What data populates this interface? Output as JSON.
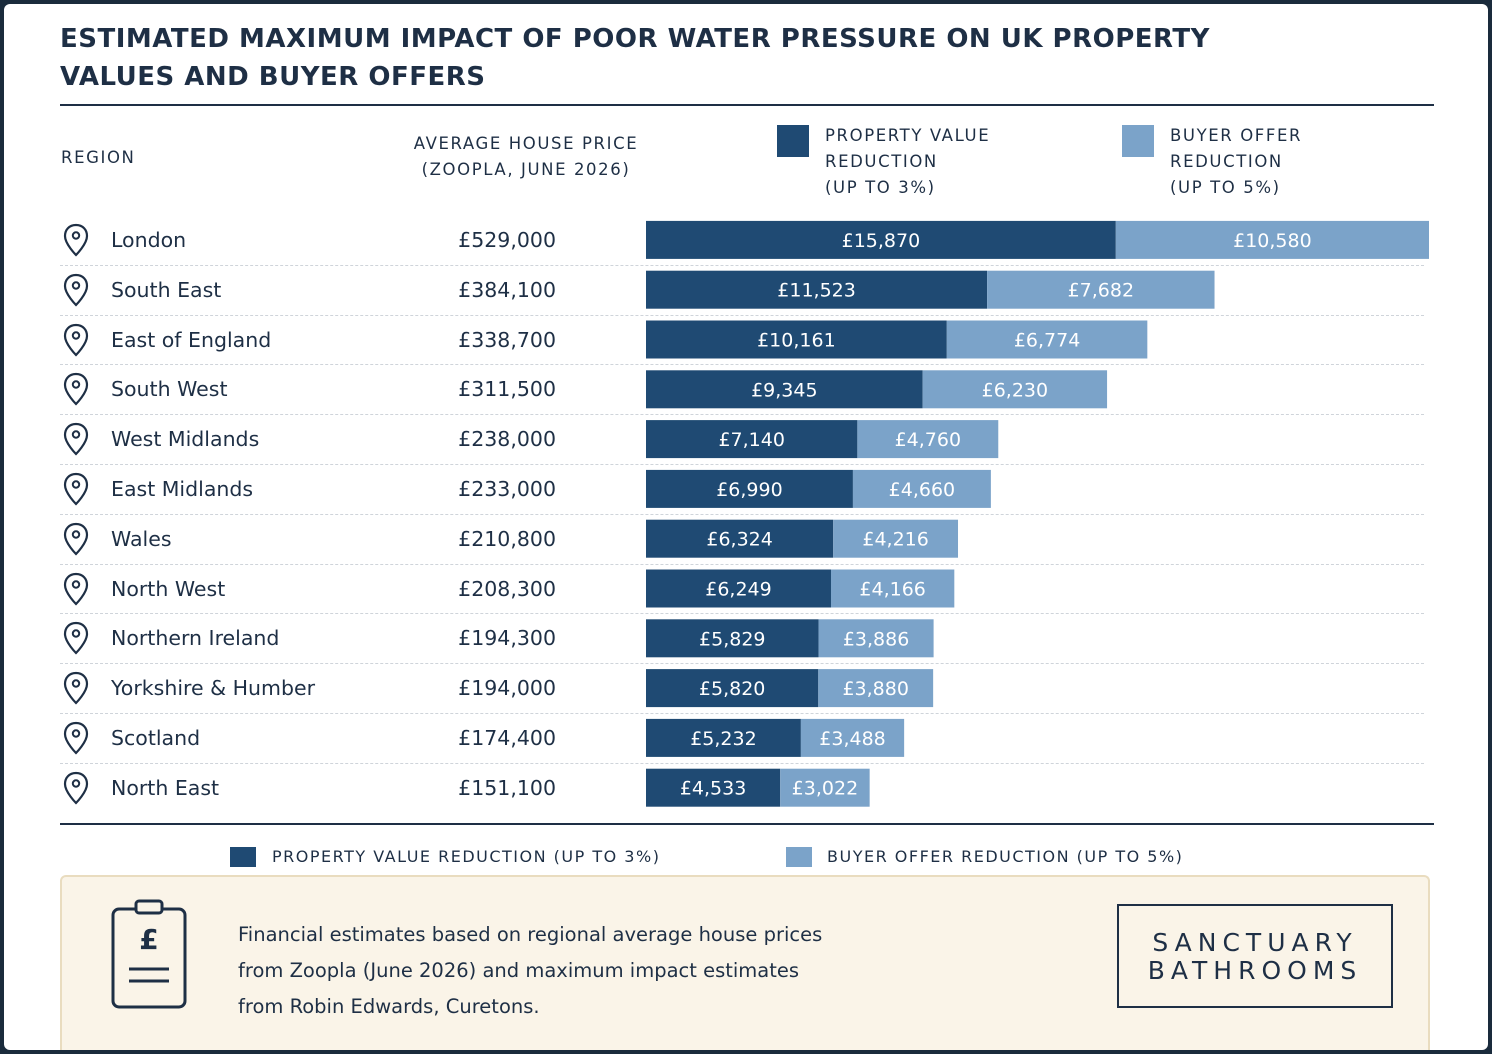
{
  "title": "ESTIMATED MAXIMUM IMPACT OF POOR WATER PRESSURE ON UK PROPERTY VALUES AND BUYER OFFERS",
  "headers": {
    "region": "REGION",
    "price_line1": "AVERAGE HOUSE PRICE",
    "price_line2": "(ZOOPLA, JUNE 2026)",
    "pv_line1": "PROPERTY VALUE",
    "pv_line2": "REDUCTION",
    "pv_line3": "(UP TO 3%)",
    "bo_line1": "BUYER OFFER",
    "bo_line2": "REDUCTION",
    "bo_line3": "(UP TO 5%)"
  },
  "colors": {
    "property_value": "#1f4a73",
    "buyer_offer": "#7ba3c9",
    "text": "#1e2f45"
  },
  "icons": {
    "row": "location-pin-icon",
    "note": "clipboard-pound-icon"
  },
  "chart_data": {
    "type": "bar",
    "orientation": "horizontal",
    "stacked": true,
    "categories": [
      "London",
      "South East",
      "East of England",
      "South West",
      "West Midlands",
      "East Midlands",
      "Wales",
      "North West",
      "Northern Ireland",
      "Yorkshire & Humber",
      "Scotland",
      "North East"
    ],
    "prices": [
      "£529,000",
      "£384,100",
      "£338,700",
      "£311,500",
      "£238,000",
      "£233,000",
      "£210,800",
      "£208,300",
      "£194,300",
      "£194,000",
      "£174,400",
      "£151,100"
    ],
    "series": [
      {
        "name": "PROPERTY VALUE REDUCTION (UP TO 3%)",
        "values": [
          15870,
          11523,
          10161,
          9345,
          7140,
          6990,
          6324,
          6249,
          5829,
          5820,
          5232,
          4533
        ],
        "labels": [
          "£15,870",
          "£11,523",
          "£10,161",
          "£9,345",
          "£7,140",
          "£6,990",
          "£6,324",
          "£6,249",
          "£5,829",
          "£5,820",
          "£5,232",
          "£4,533"
        ],
        "color": "#1f4a73"
      },
      {
        "name": "BUYER OFFER REDUCTION (UP TO 5%)",
        "values": [
          10580,
          7682,
          6774,
          6230,
          4760,
          4660,
          4216,
          4166,
          3886,
          3880,
          3488,
          3022
        ],
        "labels": [
          "£10,580",
          "£7,682",
          "£6,774",
          "£6,230",
          "£4,760",
          "£4,660",
          "£4,216",
          "£4,166",
          "£3,886",
          "£3,880",
          "£3,488",
          "£3,022"
        ],
        "color": "#7ba3c9"
      }
    ],
    "legend_position": "bottom",
    "grid": false
  },
  "legend": {
    "pv": "PROPERTY VALUE REDUCTION (UP TO 3%)",
    "bo": "BUYER OFFER REDUCTION (UP TO 5%)"
  },
  "note": {
    "text_line1": "Financial estimates based on regional average house prices",
    "text_line2": "from Zoopla (June 2026) and maximum impact estimates",
    "text_line3": "from Robin Edwards, Curetons.",
    "clipboard_symbol": "£"
  },
  "logo": {
    "line1": "SANCTUARY",
    "line2": "BATHROOMS"
  }
}
